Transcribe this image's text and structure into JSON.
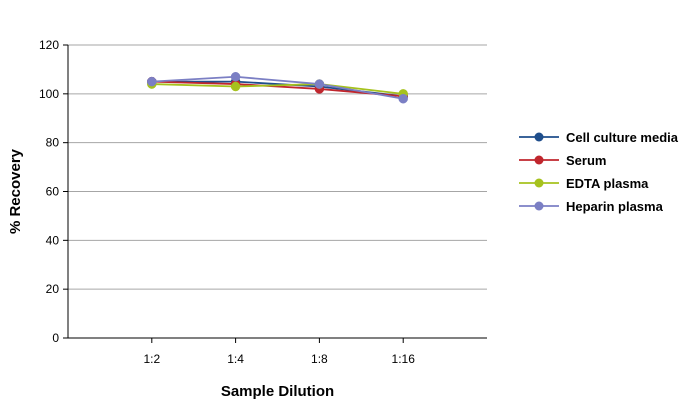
{
  "chart_data": {
    "type": "line",
    "title": "",
    "xlabel": "Sample Dilution",
    "ylabel": "% Recovery",
    "categories": [
      "1:2",
      "1:4",
      "1:8",
      "1:16"
    ],
    "ylim": [
      0,
      120
    ],
    "yticks": [
      0,
      20,
      40,
      60,
      80,
      100,
      120
    ],
    "grid": "horizontal",
    "legend_position": "right",
    "series": [
      {
        "name": "Cell culture media",
        "color": "#1f4e8c",
        "values": [
          105,
          105,
          103,
          99
        ]
      },
      {
        "name": "Serum",
        "color": "#c0262d",
        "values": [
          105,
          104,
          102,
          99
        ]
      },
      {
        "name": "EDTA plasma",
        "color": "#a6c21e",
        "values": [
          104,
          103,
          104,
          100
        ]
      },
      {
        "name": "Heparin plasma",
        "color": "#7b7fc4",
        "values": [
          105,
          107,
          104,
          98
        ]
      }
    ]
  }
}
